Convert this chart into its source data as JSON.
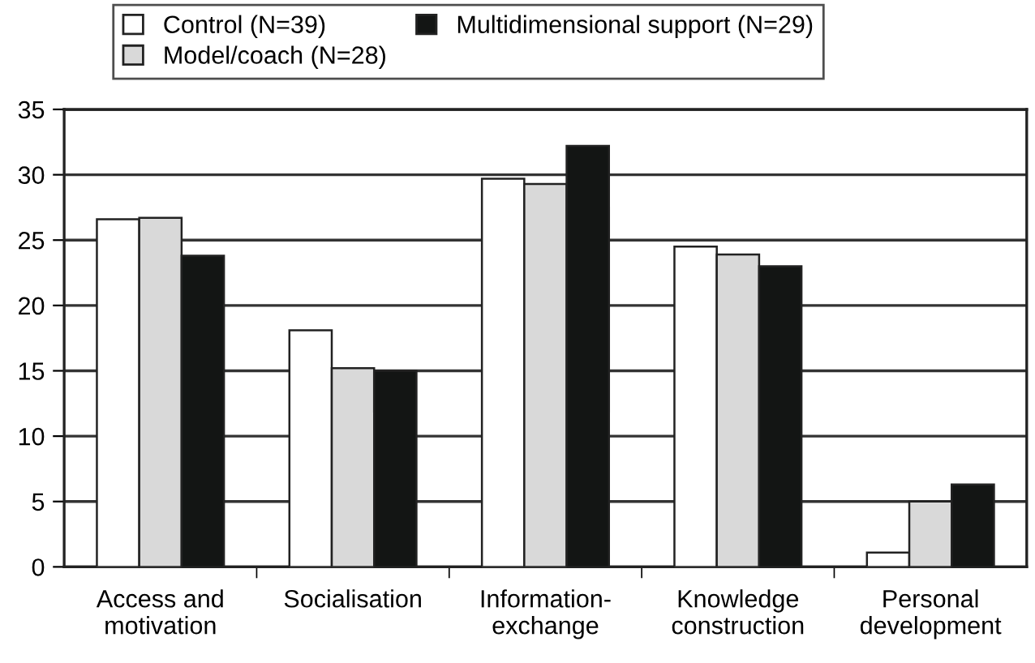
{
  "chart_data": {
    "type": "bar",
    "categories": [
      "Access and\nmotivation",
      "Socialisation",
      "Information-\nexchange",
      "Knowledge\nconstruction",
      "Personal\ndevelopment"
    ],
    "series": [
      {
        "name": "Control (N=39)",
        "color": "#ffffff",
        "values": [
          26.6,
          18.1,
          29.7,
          24.5,
          1.1
        ]
      },
      {
        "name": "Model/coach (N=28)",
        "color": "#d9d9d9",
        "values": [
          26.7,
          15.2,
          29.3,
          23.9,
          5.0
        ]
      },
      {
        "name": "Multidimensional support (N=29)",
        "color": "#131514",
        "values": [
          23.8,
          15.0,
          32.2,
          23.0,
          6.3
        ]
      }
    ],
    "ylim": [
      0,
      35
    ],
    "yticks": [
      0,
      5,
      10,
      15,
      20,
      25,
      30,
      35
    ],
    "grid": "y",
    "legend": "top"
  }
}
